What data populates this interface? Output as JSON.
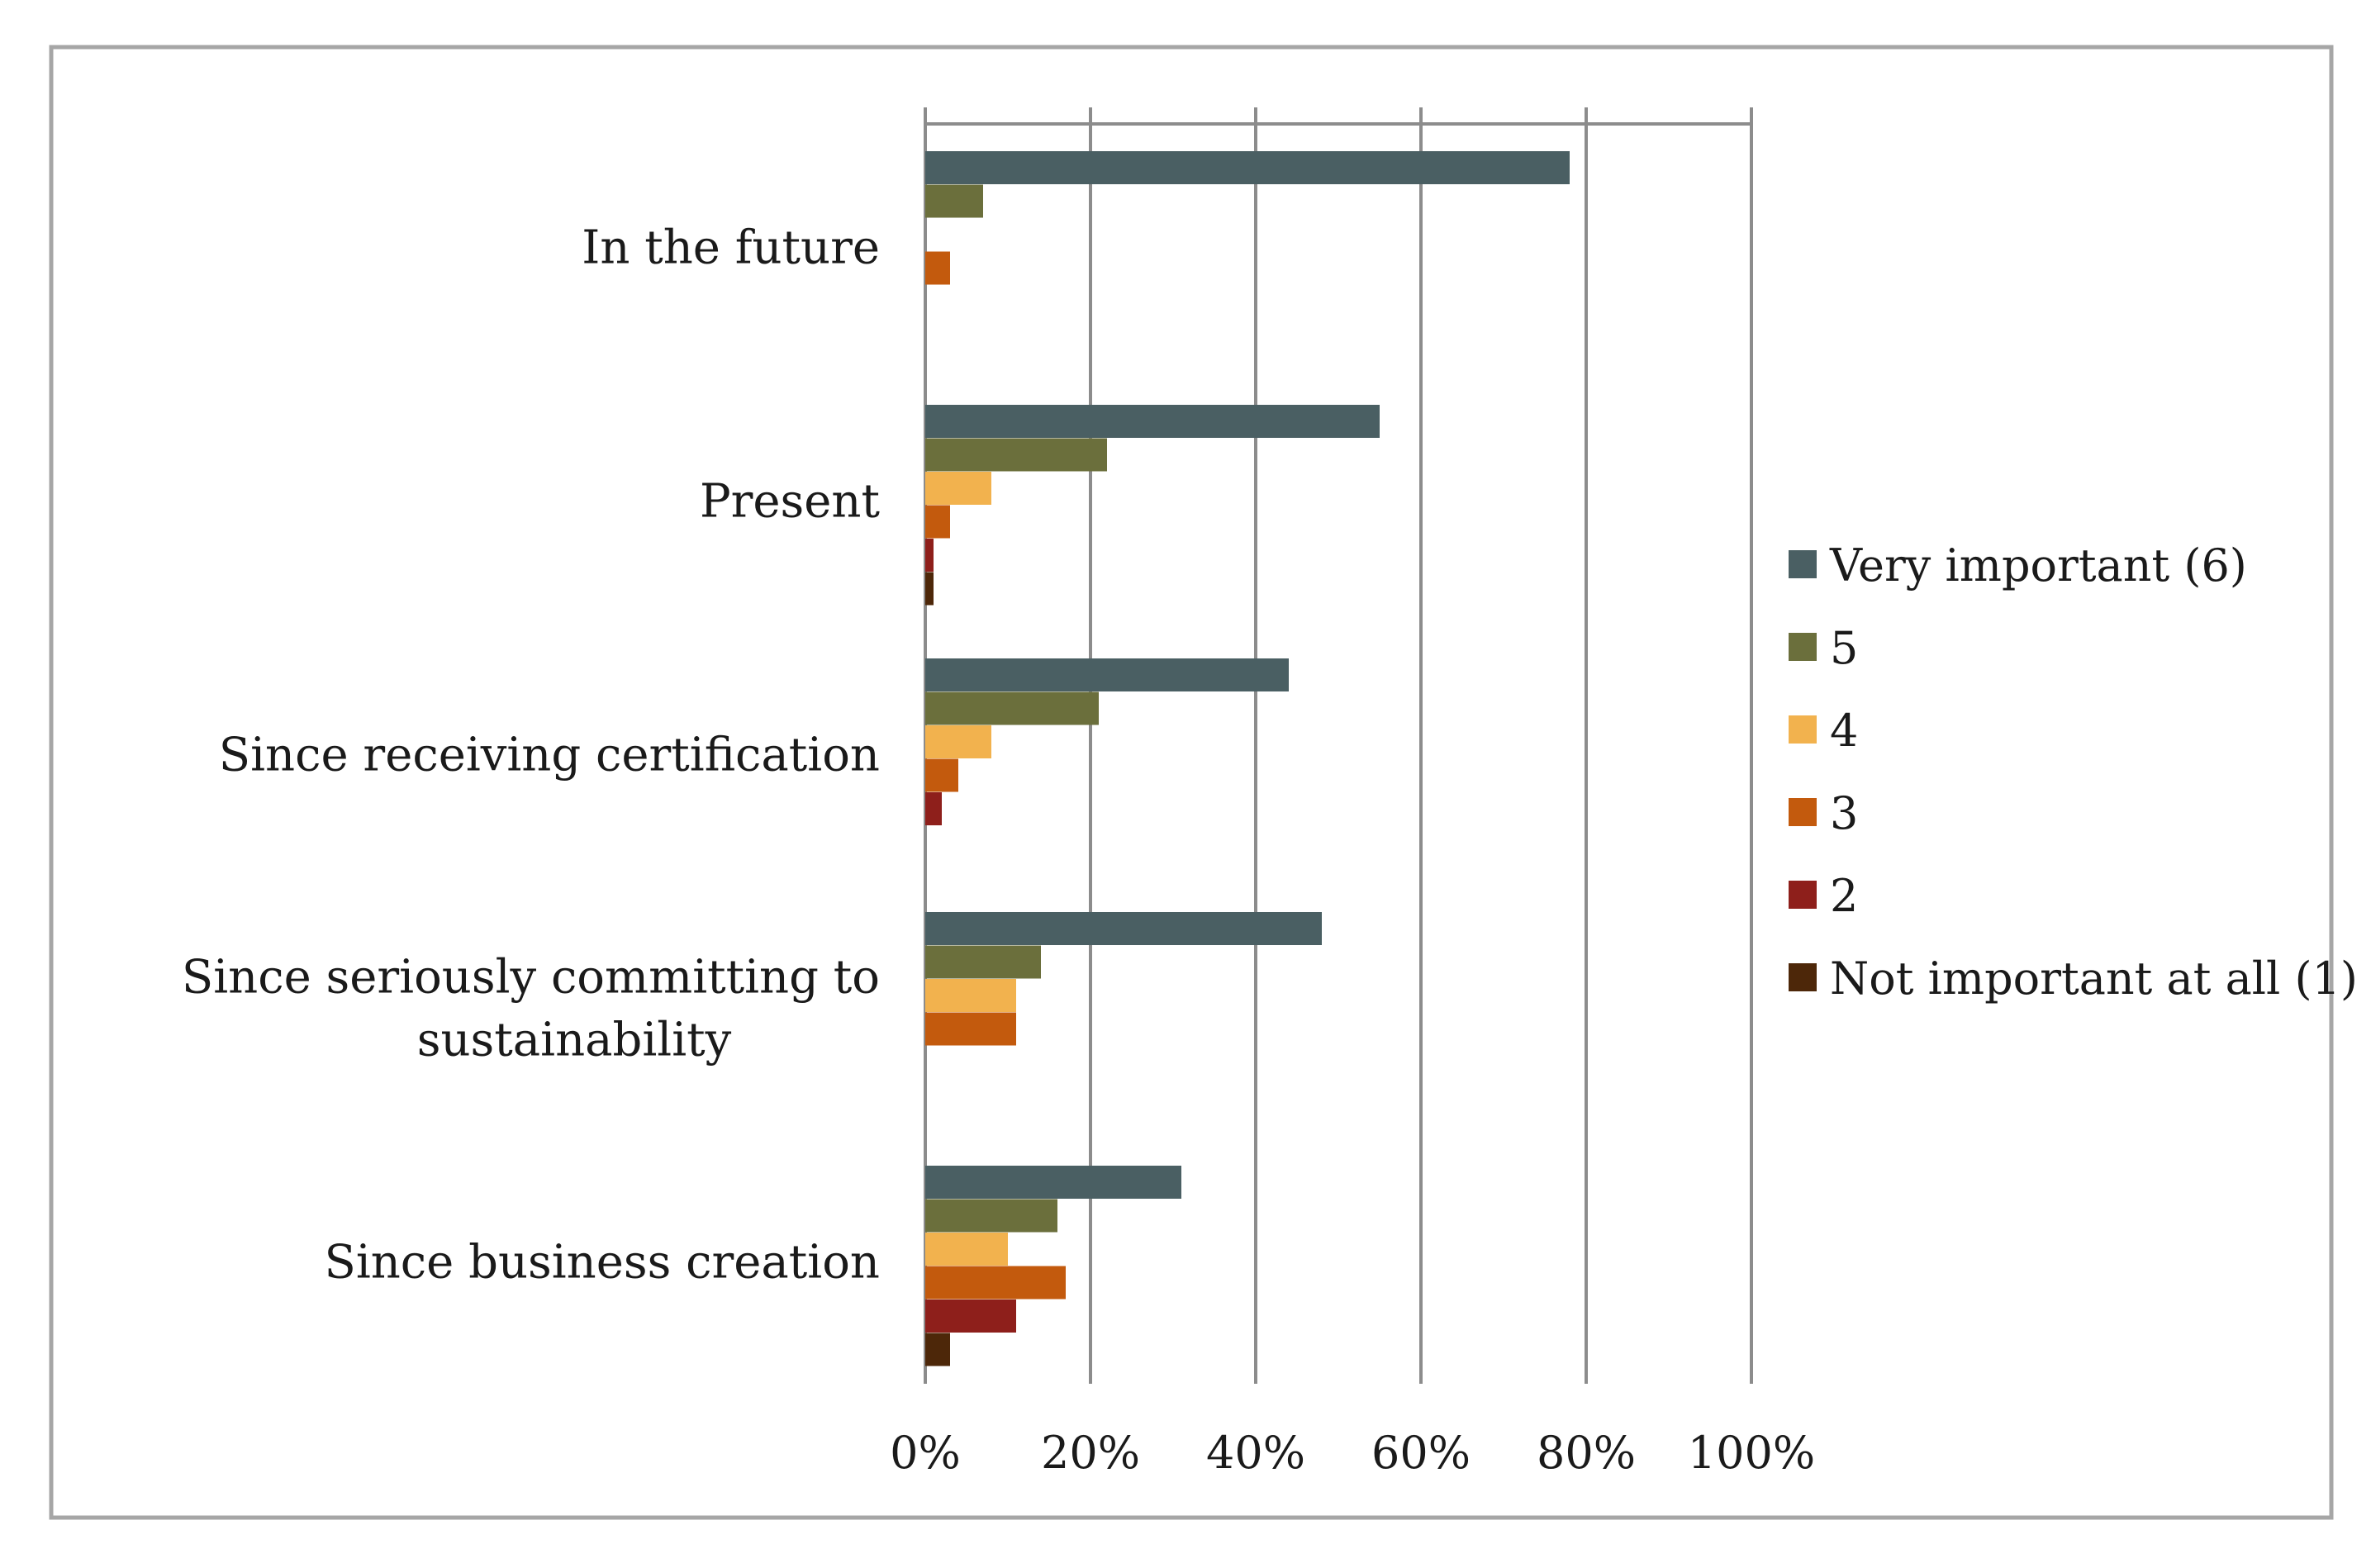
{
  "chart_data": {
    "type": "bar",
    "orientation": "horizontal",
    "title": "",
    "xlabel": "",
    "ylabel": "",
    "xlim": [
      0,
      100
    ],
    "x_ticks": [
      0,
      20,
      40,
      60,
      80,
      100
    ],
    "x_tick_labels": [
      "0%",
      "20%",
      "40%",
      "60%",
      "80%",
      "100%"
    ],
    "grid": "vertical",
    "legend_position": "right",
    "categories": [
      "In the future",
      "Present",
      "Since receiving certification",
      "Since seriously committing to sustainability",
      "Since business creation"
    ],
    "category_label_lines": [
      [
        "In the future"
      ],
      [
        "Present"
      ],
      [
        "Since receiving certification"
      ],
      [
        "Since seriously committing to",
        "sustainability"
      ],
      [
        "Since business creation"
      ]
    ],
    "series": [
      {
        "name": "Very important (6)",
        "color": "#4a5f63",
        "values": [
          78,
          55,
          44,
          48,
          31
        ]
      },
      {
        "name": "5",
        "color": "#6b6f3c",
        "values": [
          7,
          22,
          21,
          14,
          16
        ]
      },
      {
        "name": "4",
        "color": "#f2b24e",
        "values": [
          0,
          8,
          8,
          11,
          10
        ]
      },
      {
        "name": "3",
        "color": "#c35a0d",
        "values": [
          3,
          3,
          4,
          11,
          17
        ]
      },
      {
        "name": "2",
        "color": "#8e1f1b",
        "values": [
          0,
          1,
          2,
          0,
          11
        ]
      },
      {
        "name": "Not important at all (1)",
        "color": "#4d2709",
        "values": [
          0,
          1,
          0,
          0,
          3
        ]
      }
    ]
  }
}
